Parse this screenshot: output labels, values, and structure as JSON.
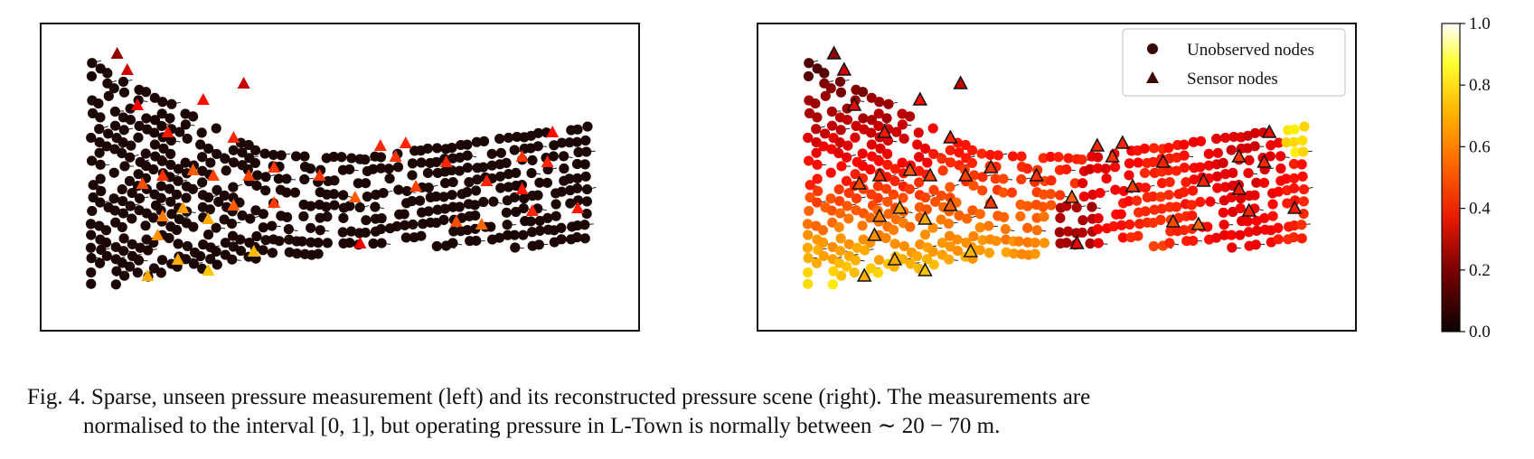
{
  "figure": {
    "panels": [
      {
        "id": "left",
        "kind": "measurement"
      },
      {
        "id": "right",
        "kind": "reconstruction"
      }
    ],
    "legend": {
      "entries": [
        "Unobserved nodes",
        "Sensor nodes"
      ]
    },
    "colorbar": {
      "colormap": "hot",
      "ticks": [
        "0.0",
        "0.2",
        "0.4",
        "0.6",
        "0.8",
        "1.0"
      ],
      "range": [
        0.0,
        1.0
      ]
    }
  },
  "caption": {
    "line1": "Fig. 4. Sparse, unseen pressure measurement (left) and its reconstructed pressure scene (right). The measurements are",
    "line2": "normalised to the interval [0, 1], but operating pressure in L-Town is normally between ∼ 20 − 70 m."
  },
  "chart_data": {
    "type": "scatter",
    "colorbar_range": [
      0.0,
      1.0
    ],
    "colorbar_ticks": [
      0.0,
      0.2,
      0.4,
      0.6,
      0.8,
      1.0
    ],
    "legend": [
      "Unobserved nodes",
      "Sensor nodes"
    ]
  },
  "colors": {
    "unobserved_left": "#1c0604",
    "frame": "#111111",
    "legend_marker": "#3a0a06"
  }
}
